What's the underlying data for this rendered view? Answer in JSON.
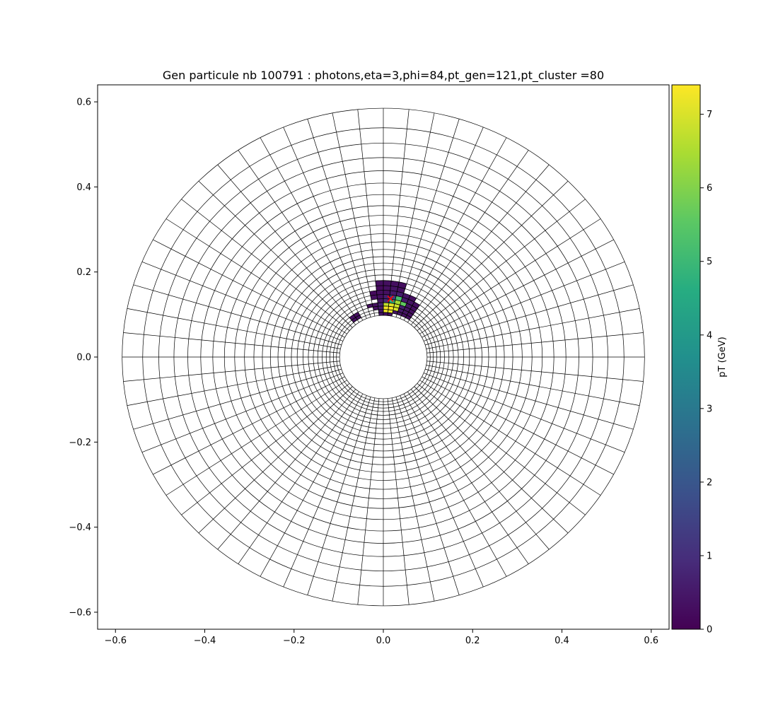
{
  "chart_data": {
    "type": "heatmap",
    "title": "Gen particule nb 100791 : photons,eta=3,phi=84,pt_gen=121,pt_cluster =80",
    "xlim": [
      -0.64,
      0.64
    ],
    "ylim": [
      -0.64,
      0.64
    ],
    "x_ticks": [
      "−0.6",
      "−0.4",
      "−0.2",
      "0.0",
      "0.2",
      "0.4",
      "0.6"
    ],
    "y_ticks": [
      "−0.6",
      "−0.4",
      "−0.2",
      "0.0",
      "0.2",
      "0.4",
      "0.6"
    ],
    "grid": {
      "r_edges": [
        0.098,
        0.105,
        0.112,
        0.12,
        0.128,
        0.137,
        0.147,
        0.157,
        0.168,
        0.18,
        0.193,
        0.206,
        0.221,
        0.236,
        0.253,
        0.271,
        0.29,
        0.311,
        0.333,
        0.356,
        0.382,
        0.409,
        0.438,
        0.469,
        0.503,
        0.539,
        0.585
      ],
      "phi_bins": 64
    },
    "marker": {
      "x": 0.016,
      "y": 0.137,
      "symbol": "x",
      "color": "#ff0000"
    },
    "colorbar": {
      "label": "pT (GeV)",
      "range": [
        0,
        7.4
      ],
      "ticks": [
        "0",
        "1",
        "2",
        "3",
        "4",
        "5",
        "6",
        "7"
      ],
      "colormap": "viridis"
    },
    "cells": [
      {
        "r": 0,
        "phi": 14,
        "v": 0.3
      },
      {
        "r": 0,
        "phi": 15,
        "v": 0.3
      },
      {
        "r": 0,
        "phi": 16,
        "v": 0.4
      },
      {
        "r": 1,
        "phi": 10,
        "v": 0.3
      },
      {
        "r": 1,
        "phi": 11,
        "v": 0.3
      },
      {
        "r": 1,
        "phi": 12,
        "v": 0.4
      },
      {
        "r": 1,
        "phi": 13,
        "v": 0.4
      },
      {
        "r": 1,
        "phi": 14,
        "v": 7.2
      },
      {
        "r": 1,
        "phi": 15,
        "v": 7.3
      },
      {
        "r": 1,
        "phi": 16,
        "v": 0.5
      },
      {
        "r": 1,
        "phi": 21,
        "v": 0.3
      },
      {
        "r": 1,
        "phi": 22,
        "v": 0.3
      },
      {
        "r": 2,
        "phi": 10,
        "v": 0.3
      },
      {
        "r": 2,
        "phi": 11,
        "v": 0.4
      },
      {
        "r": 2,
        "phi": 12,
        "v": 0.5
      },
      {
        "r": 2,
        "phi": 13,
        "v": 7.0
      },
      {
        "r": 2,
        "phi": 14,
        "v": 7.4
      },
      {
        "r": 2,
        "phi": 15,
        "v": 7.3
      },
      {
        "r": 2,
        "phi": 16,
        "v": 0.6
      },
      {
        "r": 2,
        "phi": 17,
        "v": 0.3
      },
      {
        "r": 2,
        "phi": 21,
        "v": 0.3
      },
      {
        "r": 2,
        "phi": 22,
        "v": 0.3
      },
      {
        "r": 3,
        "phi": 10,
        "v": 0.3
      },
      {
        "r": 3,
        "phi": 11,
        "v": 0.4
      },
      {
        "r": 3,
        "phi": 12,
        "v": 0.6
      },
      {
        "r": 3,
        "phi": 13,
        "v": 6.9
      },
      {
        "r": 3,
        "phi": 14,
        "v": 7.1
      },
      {
        "r": 3,
        "phi": 15,
        "v": 6.7
      },
      {
        "r": 3,
        "phi": 16,
        "v": 0.7
      },
      {
        "r": 3,
        "phi": 17,
        "v": 0.3
      },
      {
        "r": 3,
        "phi": 18,
        "v": 0.3
      },
      {
        "r": 4,
        "phi": 10,
        "v": 0.3
      },
      {
        "r": 4,
        "phi": 11,
        "v": 0.4
      },
      {
        "r": 4,
        "phi": 12,
        "v": 5.6
      },
      {
        "r": 4,
        "phi": 13,
        "v": 6.4
      },
      {
        "r": 4,
        "phi": 14,
        "v": 4.6
      },
      {
        "r": 4,
        "phi": 15,
        "v": 0.9
      },
      {
        "r": 4,
        "phi": 16,
        "v": 0.4
      },
      {
        "r": 5,
        "phi": 10,
        "v": 0.3
      },
      {
        "r": 5,
        "phi": 11,
        "v": 0.4
      },
      {
        "r": 5,
        "phi": 12,
        "v": 0.5
      },
      {
        "r": 5,
        "phi": 13,
        "v": 5.2
      },
      {
        "r": 5,
        "phi": 14,
        "v": 1.4
      },
      {
        "r": 5,
        "phi": 15,
        "v": 0.6
      },
      {
        "r": 5,
        "phi": 16,
        "v": 0.3
      },
      {
        "r": 5,
        "phi": 17,
        "v": 0.3
      },
      {
        "r": 6,
        "phi": 11,
        "v": 0.3
      },
      {
        "r": 6,
        "phi": 12,
        "v": 0.4
      },
      {
        "r": 6,
        "phi": 13,
        "v": 0.6
      },
      {
        "r": 6,
        "phi": 14,
        "v": 0.5
      },
      {
        "r": 6,
        "phi": 15,
        "v": 0.3
      },
      {
        "r": 6,
        "phi": 16,
        "v": 0.3
      },
      {
        "r": 6,
        "phi": 17,
        "v": 0.2
      },
      {
        "r": 7,
        "phi": 13,
        "v": 0.3
      },
      {
        "r": 7,
        "phi": 14,
        "v": 0.4
      },
      {
        "r": 7,
        "phi": 15,
        "v": 0.3
      },
      {
        "r": 7,
        "phi": 16,
        "v": 0.2
      },
      {
        "r": 8,
        "phi": 13,
        "v": 0.3
      },
      {
        "r": 8,
        "phi": 14,
        "v": 0.3
      },
      {
        "r": 8,
        "phi": 15,
        "v": 0.3
      },
      {
        "r": 8,
        "phi": 16,
        "v": 0.3
      }
    ]
  }
}
